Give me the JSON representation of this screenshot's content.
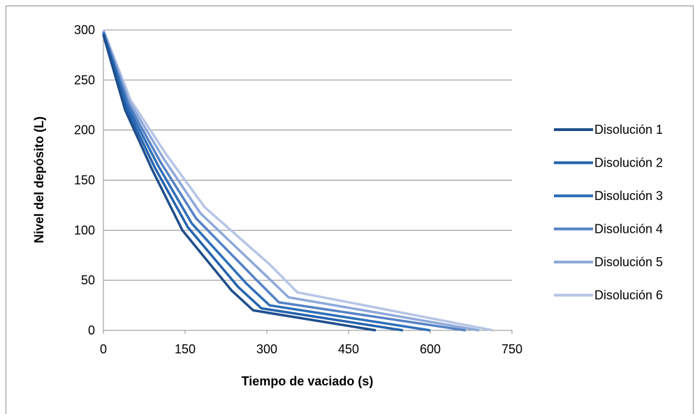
{
  "chart_data": {
    "type": "line",
    "title": "",
    "xlabel": "Tiempo de vaciado (s)",
    "ylabel": "Nivel del depósito (L)",
    "xlim": [
      0,
      750
    ],
    "ylim": [
      0,
      300
    ],
    "xticks": [
      "0",
      "150",
      "300",
      "450",
      "600",
      "750"
    ],
    "yticks": [
      "0",
      "50",
      "100",
      "150",
      "200",
      "250",
      "300"
    ],
    "grid": "horizontal",
    "legend_position": "right",
    "series": [
      {
        "name": "Disolución 1",
        "color": "#1f4e8c",
        "x": [
          0,
          40,
          90,
          145,
          235,
          275,
          500
        ],
        "y": [
          295,
          220,
          160,
          100,
          40,
          20,
          0
        ]
      },
      {
        "name": "Disolución 2",
        "color": "#2563ad",
        "x": [
          0,
          42,
          95,
          155,
          248,
          290,
          550
        ],
        "y": [
          296,
          222,
          162,
          103,
          43,
          22,
          0
        ]
      },
      {
        "name": "Disolución 3",
        "color": "#2f6fb8",
        "x": [
          0,
          44,
          100,
          162,
          262,
          305,
          600
        ],
        "y": [
          297,
          224,
          165,
          107,
          47,
          25,
          0
        ]
      },
      {
        "name": "Disolución 4",
        "color": "#5582c6",
        "x": [
          0,
          46,
          105,
          170,
          278,
          322,
          665
        ],
        "y": [
          298,
          226,
          168,
          112,
          52,
          28,
          0
        ]
      },
      {
        "name": "Disolución 5",
        "color": "#8ea8da",
        "x": [
          0,
          48,
          110,
          178,
          292,
          340,
          690
        ],
        "y": [
          299,
          228,
          172,
          117,
          58,
          33,
          0
        ]
      },
      {
        "name": "Disolución 6",
        "color": "#b6c5e6",
        "x": [
          0,
          50,
          115,
          186,
          305,
          356,
          715
        ],
        "y": [
          300,
          230,
          176,
          123,
          66,
          38,
          0
        ]
      }
    ]
  }
}
